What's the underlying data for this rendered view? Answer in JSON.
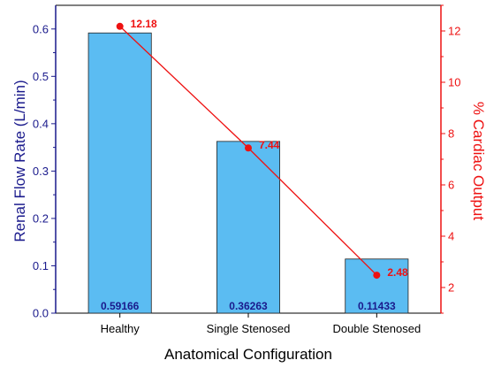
{
  "chart_data": {
    "type": "bar+line",
    "xlabel": "Anatomical Configuration",
    "categories": [
      "Healthy",
      "Single Stenosed",
      "Double Stenosed"
    ],
    "series": [
      {
        "name": "",
        "type": "bar",
        "axis": "left",
        "values": [
          0.59166,
          0.36263,
          0.11433
        ],
        "value_labels": [
          "0.59166",
          "0.36263",
          "0.11433"
        ],
        "color": "#5bbcf2",
        "label_color": "#1a1a8c"
      },
      {
        "name": "",
        "type": "line",
        "axis": "right",
        "values": [
          12.18,
          7.44,
          2.48
        ],
        "value_labels": [
          "12.18",
          "7.44",
          "2.48"
        ],
        "color": "#ee1111"
      }
    ],
    "left_axis": {
      "label": "Renal Flow Rate (L/min)",
      "ylim": [
        0,
        0.65
      ],
      "ticks": [
        "0.0",
        "0.1",
        "0.2",
        "0.3",
        "0.4",
        "0.5",
        "0.6"
      ],
      "tick_values": [
        0,
        0.1,
        0.2,
        0.3,
        0.4,
        0.5,
        0.6
      ],
      "color": "#1a1a8c"
    },
    "right_axis": {
      "label": "% Cardiac Output",
      "ylim": [
        1,
        13
      ],
      "ticks": [
        "2",
        "4",
        "6",
        "8",
        "10",
        "12"
      ],
      "tick_values": [
        2,
        4,
        6,
        8,
        10,
        12
      ],
      "color": "#ee1111"
    },
    "grid": false,
    "legend": "none"
  }
}
